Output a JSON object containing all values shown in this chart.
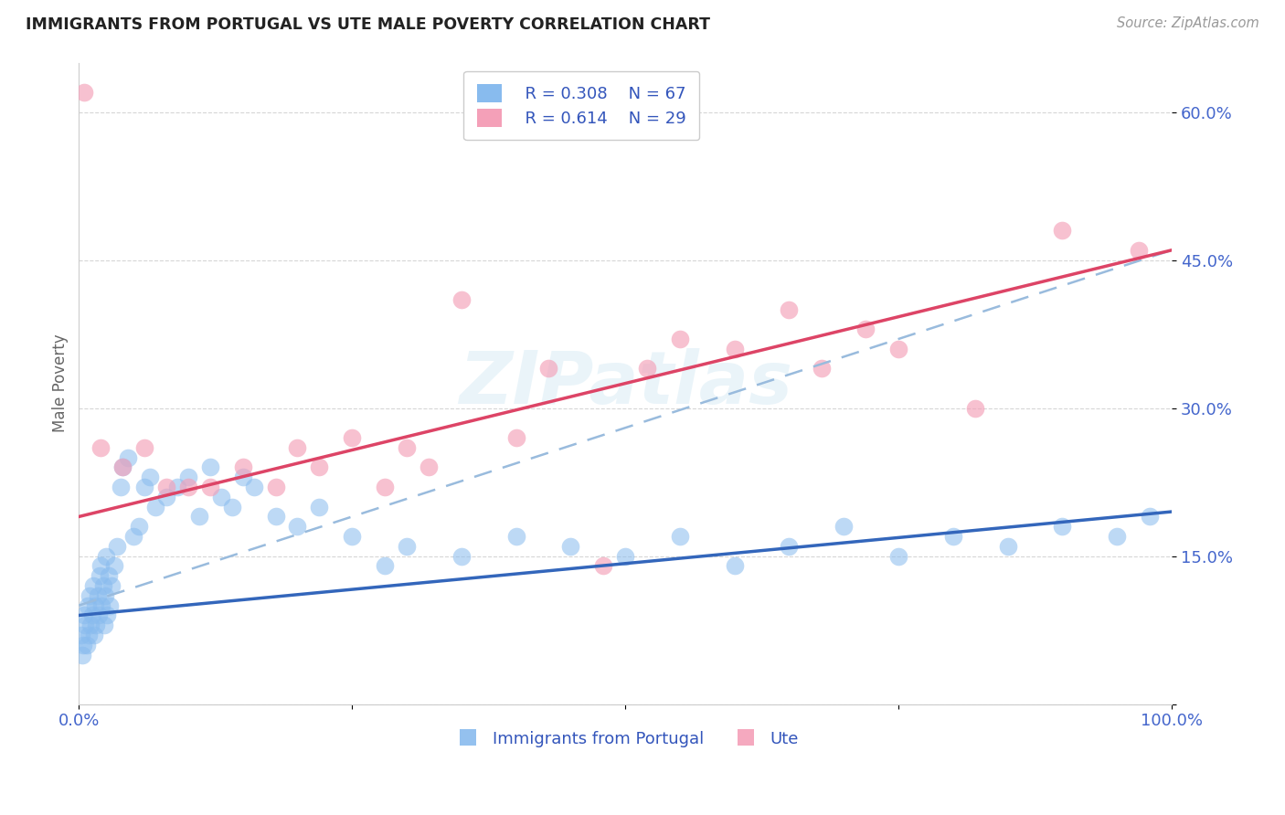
{
  "title": "IMMIGRANTS FROM PORTUGAL VS UTE MALE POVERTY CORRELATION CHART",
  "source_text": "Source: ZipAtlas.com",
  "ylabel": "Male Poverty",
  "xlim": [
    0,
    100
  ],
  "ylim": [
    0,
    65
  ],
  "yticks": [
    0,
    15,
    30,
    45,
    60
  ],
  "ytick_labels": [
    "",
    "15.0%",
    "30.0%",
    "45.0%",
    "60.0%"
  ],
  "xticks": [
    0,
    25,
    50,
    75,
    100
  ],
  "xtick_labels": [
    "0.0%",
    "",
    "",
    "",
    "100.0%"
  ],
  "legend_r_blue": "R = 0.308",
  "legend_n_blue": "N = 67",
  "legend_r_pink": "R = 0.614",
  "legend_n_pink": "N = 29",
  "legend_label_blue": "Immigrants from Portugal",
  "legend_label_pink": "Ute",
  "blue_color": "#88BBEE",
  "pink_color": "#F4A0B8",
  "regression_blue_color": "#3366BB",
  "regression_pink_color": "#DD4466",
  "regression_dashed_color": "#99BBDD",
  "watermark": "ZIPatlas",
  "blue_points_x": [
    0.2,
    0.3,
    0.4,
    0.5,
    0.6,
    0.7,
    0.8,
    0.9,
    1.0,
    1.1,
    1.2,
    1.3,
    1.4,
    1.5,
    1.6,
    1.7,
    1.8,
    1.9,
    2.0,
    2.1,
    2.2,
    2.3,
    2.4,
    2.5,
    2.6,
    2.7,
    2.8,
    3.0,
    3.2,
    3.5,
    3.8,
    4.0,
    4.5,
    5.0,
    5.5,
    6.0,
    6.5,
    7.0,
    8.0,
    9.0,
    10.0,
    11.0,
    12.0,
    13.0,
    14.0,
    15.0,
    16.0,
    18.0,
    20.0,
    22.0,
    25.0,
    28.0,
    30.0,
    35.0,
    40.0,
    45.0,
    50.0,
    55.0,
    60.0,
    65.0,
    70.0,
    75.0,
    80.0,
    85.0,
    90.0,
    95.0,
    98.0
  ],
  "blue_points_y": [
    7.0,
    5.0,
    6.0,
    9.0,
    8.0,
    6.0,
    10.0,
    7.0,
    11.0,
    8.0,
    9.0,
    12.0,
    7.0,
    10.0,
    8.0,
    11.0,
    9.0,
    13.0,
    14.0,
    10.0,
    12.0,
    8.0,
    11.0,
    15.0,
    9.0,
    13.0,
    10.0,
    12.0,
    14.0,
    16.0,
    22.0,
    24.0,
    25.0,
    17.0,
    18.0,
    22.0,
    23.0,
    20.0,
    21.0,
    22.0,
    23.0,
    19.0,
    24.0,
    21.0,
    20.0,
    23.0,
    22.0,
    19.0,
    18.0,
    20.0,
    17.0,
    14.0,
    16.0,
    15.0,
    17.0,
    16.0,
    15.0,
    17.0,
    14.0,
    16.0,
    18.0,
    15.0,
    17.0,
    16.0,
    18.0,
    17.0,
    19.0
  ],
  "pink_points_x": [
    0.5,
    2.0,
    4.0,
    6.0,
    8.0,
    10.0,
    12.0,
    15.0,
    18.0,
    20.0,
    22.0,
    25.0,
    28.0,
    30.0,
    32.0,
    35.0,
    40.0,
    43.0,
    48.0,
    52.0,
    55.0,
    60.0,
    65.0,
    68.0,
    72.0,
    75.0,
    82.0,
    90.0,
    97.0
  ],
  "pink_points_y": [
    62.0,
    26.0,
    24.0,
    26.0,
    22.0,
    22.0,
    22.0,
    24.0,
    22.0,
    26.0,
    24.0,
    27.0,
    22.0,
    26.0,
    24.0,
    41.0,
    27.0,
    34.0,
    14.0,
    34.0,
    37.0,
    36.0,
    40.0,
    34.0,
    38.0,
    36.0,
    30.0,
    48.0,
    46.0
  ],
  "blue_line_x": [
    0,
    100
  ],
  "blue_line_y": [
    9.0,
    19.5
  ],
  "pink_line_x": [
    0,
    100
  ],
  "pink_line_y": [
    19.0,
    46.0
  ],
  "dashed_line_x": [
    0,
    100
  ],
  "dashed_line_y": [
    10.0,
    46.0
  ]
}
